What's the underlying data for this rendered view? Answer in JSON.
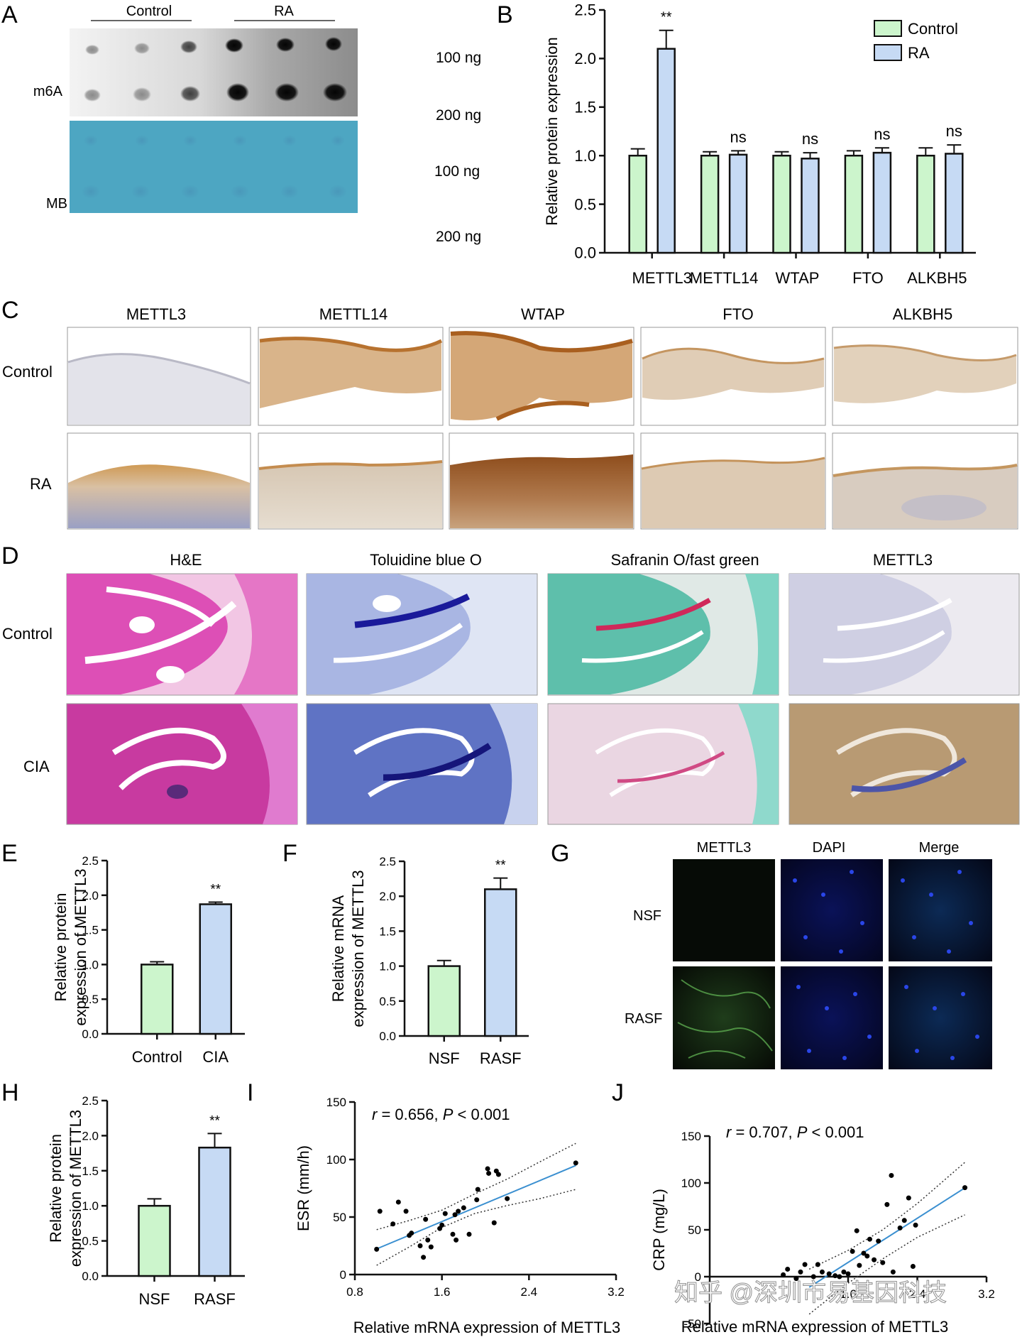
{
  "panels": {
    "A": {
      "letter": "A",
      "groups": [
        "Control",
        "RA"
      ],
      "rows": [
        "m6A",
        "MB"
      ],
      "amounts": [
        "100 ng",
        "200 ng"
      ]
    },
    "C": {
      "letter": "C",
      "markers": [
        "METTL3",
        "METTL14",
        "WTAP",
        "FTO",
        "ALKBH5"
      ],
      "rows": [
        "Control",
        "RA"
      ]
    },
    "D": {
      "letter": "D",
      "stains": [
        "H&E",
        "Toluidine blue O",
        "Safranin O/fast green",
        "METTL3"
      ],
      "rows": [
        "Control",
        "CIA"
      ]
    },
    "G": {
      "letter": "G",
      "channels": [
        "METTL3",
        "DAPI",
        "Merge"
      ],
      "rows": [
        "NSF",
        "RASF"
      ]
    }
  },
  "colors": {
    "control": "#ccf5cc",
    "ra": "#c6daf4",
    "line": "#3a8fd0",
    "stroke": "#111111"
  },
  "watermark": "知乎 @深圳市易基因科技",
  "chart_data": [
    {
      "id": "B",
      "letter": "B",
      "type": "bar",
      "ylabel": "Relative protein expression",
      "xlabel": "",
      "ylim": [
        0,
        2.5
      ],
      "yticks": [
        "0.0",
        "0.5",
        "1.0",
        "1.5",
        "2.0",
        "2.5"
      ],
      "categories": [
        "METTL3",
        "METTL14",
        "WTAP",
        "FTO",
        "ALKBH5"
      ],
      "series": [
        {
          "name": "Control",
          "values": [
            1.0,
            1.0,
            1.0,
            1.0,
            1.0
          ],
          "errors": [
            0.07,
            0.04,
            0.04,
            0.05,
            0.08
          ]
        },
        {
          "name": "RA",
          "values": [
            2.1,
            1.01,
            0.97,
            1.03,
            1.02
          ],
          "errors": [
            0.19,
            0.04,
            0.06,
            0.05,
            0.09
          ]
        }
      ],
      "significance": [
        "**",
        "ns",
        "ns",
        "ns",
        "ns"
      ],
      "legend": "top-right"
    },
    {
      "id": "E",
      "letter": "E",
      "type": "bar",
      "ylabel": [
        "Relative protein",
        "expression of METTL3"
      ],
      "xlabel": "",
      "ylim": [
        0,
        2.5
      ],
      "yticks": [
        "0.0",
        "0.5",
        "1.0",
        "1.5",
        "2.0",
        "2.5"
      ],
      "categories": [
        "Control",
        "CIA"
      ],
      "values": [
        1.0,
        1.87
      ],
      "errors": [
        0.04,
        0.03
      ],
      "significance": [
        "",
        "**"
      ]
    },
    {
      "id": "F",
      "letter": "F",
      "type": "bar",
      "ylabel": [
        "Relative mRNA",
        "expression of METTL3"
      ],
      "xlabel": "",
      "ylim": [
        0,
        2.5
      ],
      "yticks": [
        "0.0",
        "0.5",
        "1.0",
        "1.5",
        "2.0",
        "2.5"
      ],
      "categories": [
        "NSF",
        "RASF"
      ],
      "values": [
        1.0,
        2.1
      ],
      "errors": [
        0.08,
        0.16
      ],
      "significance": [
        "",
        "**"
      ]
    },
    {
      "id": "H",
      "letter": "H",
      "type": "bar",
      "ylabel": [
        "Relative protein",
        "expression of METTL3"
      ],
      "xlabel": "",
      "ylim": [
        0,
        2.5
      ],
      "yticks": [
        "0.0",
        "0.5",
        "1.0",
        "1.5",
        "2.0",
        "2.5"
      ],
      "categories": [
        "NSF",
        "RASF"
      ],
      "values": [
        1.0,
        1.83
      ],
      "errors": [
        0.1,
        0.2
      ],
      "significance": [
        "",
        "**"
      ]
    },
    {
      "id": "I",
      "letter": "I",
      "type": "scatter",
      "xlabel": "Relative mRNA expression of METTL3",
      "ylabel": "ESR (mm/h)",
      "xlim": [
        0.8,
        3.2
      ],
      "ylim": [
        0,
        150
      ],
      "xticks": [
        "0.8",
        "1.6",
        "2.4",
        "3.2"
      ],
      "yticks": [
        "0",
        "50",
        "100",
        "150"
      ],
      "annotation": {
        "r_label": "r",
        "r_value": " = 0.656, ",
        "p_label": "P",
        "p_value": " < 0.001"
      },
      "points": [
        [
          1.0,
          22
        ],
        [
          1.03,
          55
        ],
        [
          1.15,
          44
        ],
        [
          1.2,
          63
        ],
        [
          1.27,
          55
        ],
        [
          1.3,
          34
        ],
        [
          1.32,
          36
        ],
        [
          1.4,
          25
        ],
        [
          1.43,
          15
        ],
        [
          1.45,
          48
        ],
        [
          1.47,
          30
        ],
        [
          1.5,
          24
        ],
        [
          1.58,
          40
        ],
        [
          1.6,
          43
        ],
        [
          1.63,
          53
        ],
        [
          1.7,
          35
        ],
        [
          1.72,
          52
        ],
        [
          1.73,
          30
        ],
        [
          1.75,
          55
        ],
        [
          1.8,
          58
        ],
        [
          1.85,
          35
        ],
        [
          1.92,
          65
        ],
        [
          1.93,
          74
        ],
        [
          2.02,
          92
        ],
        [
          2.03,
          88
        ],
        [
          2.08,
          45
        ],
        [
          2.1,
          90
        ],
        [
          2.12,
          87
        ],
        [
          2.2,
          66
        ],
        [
          2.83,
          97
        ]
      ],
      "fit": {
        "slope": 39.6,
        "intercept": -17.3,
        "x_range": [
          1.0,
          2.83
        ]
      },
      "ci_upper": [
        [
          1.0,
          39
        ],
        [
          1.3,
          47
        ],
        [
          1.6,
          56
        ],
        [
          1.9,
          70
        ],
        [
          2.2,
          83
        ],
        [
          2.5,
          98
        ],
        [
          2.83,
          114
        ]
      ],
      "ci_lower": [
        [
          1.0,
          8
        ],
        [
          1.3,
          24
        ],
        [
          1.6,
          41
        ],
        [
          1.9,
          53
        ],
        [
          2.2,
          60
        ],
        [
          2.5,
          66
        ],
        [
          2.83,
          74
        ]
      ]
    },
    {
      "id": "J",
      "letter": "J",
      "type": "scatter",
      "xlabel": "Relative mRNA expression of METTL3",
      "ylabel": "CRP (mg/L)",
      "xlim": [
        0,
        3.2
      ],
      "ylim": [
        -50,
        150
      ],
      "xticks": [
        "1.6",
        "2.4",
        "3.2"
      ],
      "yticks": [
        "-50",
        "0",
        "50",
        "100",
        "150"
      ],
      "annotation": {
        "r_label": "r",
        "r_value": " = 0.707, ",
        "p_label": "P",
        "p_value": " < 0.001"
      },
      "points": [
        [
          0.85,
          2
        ],
        [
          0.9,
          8
        ],
        [
          1.0,
          -2
        ],
        [
          1.05,
          5
        ],
        [
          1.1,
          13
        ],
        [
          1.2,
          0
        ],
        [
          1.25,
          13
        ],
        [
          1.3,
          5
        ],
        [
          1.38,
          3
        ],
        [
          1.45,
          1
        ],
        [
          1.5,
          0
        ],
        [
          1.55,
          5
        ],
        [
          1.6,
          3
        ],
        [
          1.65,
          27
        ],
        [
          1.7,
          49
        ],
        [
          1.73,
          12
        ],
        [
          1.78,
          25
        ],
        [
          1.82,
          22
        ],
        [
          1.85,
          40
        ],
        [
          1.9,
          18
        ],
        [
          1.95,
          38
        ],
        [
          2.0,
          15
        ],
        [
          2.05,
          77
        ],
        [
          2.1,
          108
        ],
        [
          2.12,
          5
        ],
        [
          2.2,
          52
        ],
        [
          2.25,
          60
        ],
        [
          2.3,
          84
        ],
        [
          2.35,
          11
        ],
        [
          2.38,
          55
        ],
        [
          2.95,
          95
        ]
      ],
      "fit": {
        "slope": 58.9,
        "intercept": -79,
        "x_range": [
          1.15,
          2.95
        ]
      },
      "ci_upper": [
        [
          1.15,
          8
        ],
        [
          1.6,
          28
        ],
        [
          2.0,
          50
        ],
        [
          2.4,
          78
        ],
        [
          2.95,
          122
        ]
      ],
      "ci_lower": [
        [
          1.15,
          -40
        ],
        [
          1.6,
          -7
        ],
        [
          2.0,
          19
        ],
        [
          2.4,
          42
        ],
        [
          2.95,
          66
        ]
      ]
    }
  ]
}
